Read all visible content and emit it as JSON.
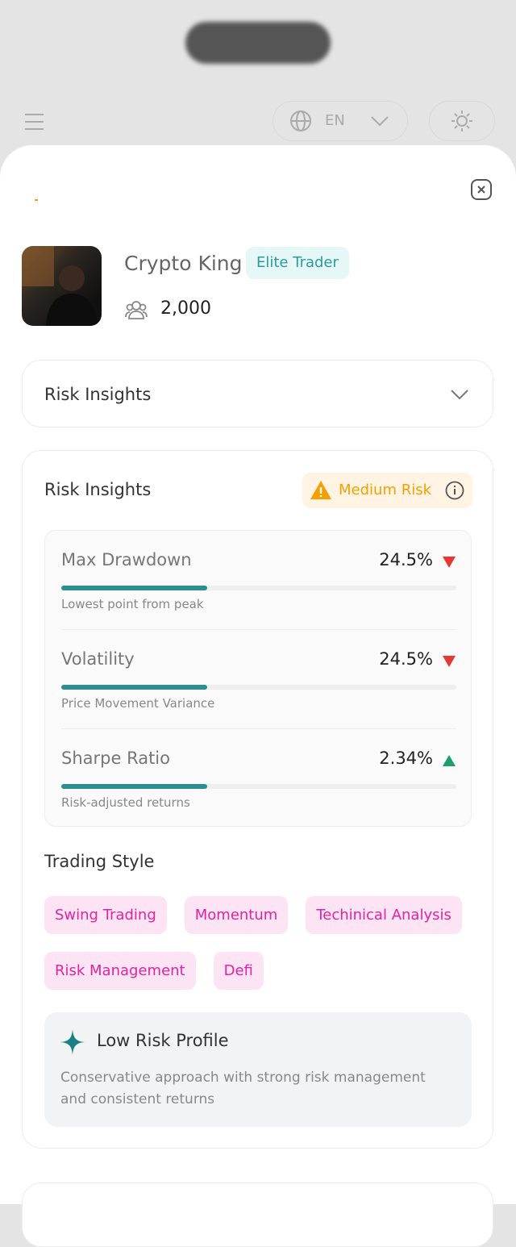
{
  "header": {
    "language": "EN"
  },
  "profile": {
    "name": "Crypto King",
    "badge": "Elite Trader",
    "followers": "2,000"
  },
  "accordion": {
    "title": "Risk Insights"
  },
  "risk_card": {
    "title": "Risk Insights",
    "risk_level": "Medium Risk",
    "metrics": [
      {
        "name": "Max Drawdown",
        "value": "24.5%",
        "trend": "down",
        "description": "Lowest point from peak"
      },
      {
        "name": "Volatility",
        "value": "24.5%",
        "trend": "down",
        "description": "Price Movement Variance"
      },
      {
        "name": "Sharpe Ratio",
        "value": "2.34%",
        "trend": "up",
        "description": "Risk-adjusted returns"
      }
    ],
    "trading_style": {
      "title": "Trading Style",
      "tags": [
        "Swing Trading",
        "Momentum",
        "Techinical Analysis",
        "Risk Management",
        "Defi"
      ]
    },
    "profile_note": {
      "title": "Low Risk Profile",
      "text": "Conservative approach with strong risk management and consistent returns"
    }
  }
}
